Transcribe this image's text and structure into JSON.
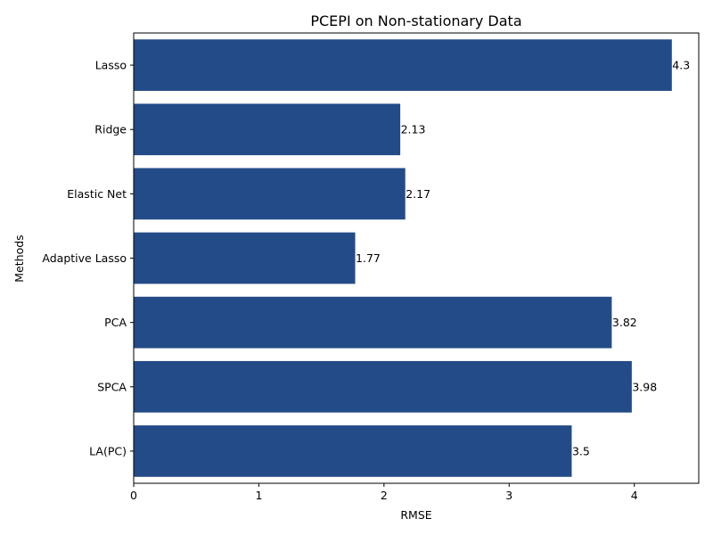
{
  "chart_data": {
    "type": "bar",
    "orientation": "horizontal",
    "title": "PCEPI on Non-stationary Data",
    "xlabel": "RMSE",
    "ylabel": "Methods",
    "categories": [
      "Lasso",
      "Ridge",
      "Elastic Net",
      "Adaptive Lasso",
      "PCA",
      "SPCA",
      "LA(PC)"
    ],
    "values": [
      4.3,
      2.13,
      2.17,
      1.77,
      3.82,
      3.98,
      3.5
    ],
    "data_labels": [
      "4.3",
      "2.13",
      "2.17",
      "1.77",
      "3.82",
      "3.98",
      "3.5"
    ],
    "xlim": [
      0,
      4.515
    ],
    "xticks": [
      0,
      1,
      2,
      3,
      4
    ],
    "grid": false,
    "bar_color": "#234b87"
  }
}
